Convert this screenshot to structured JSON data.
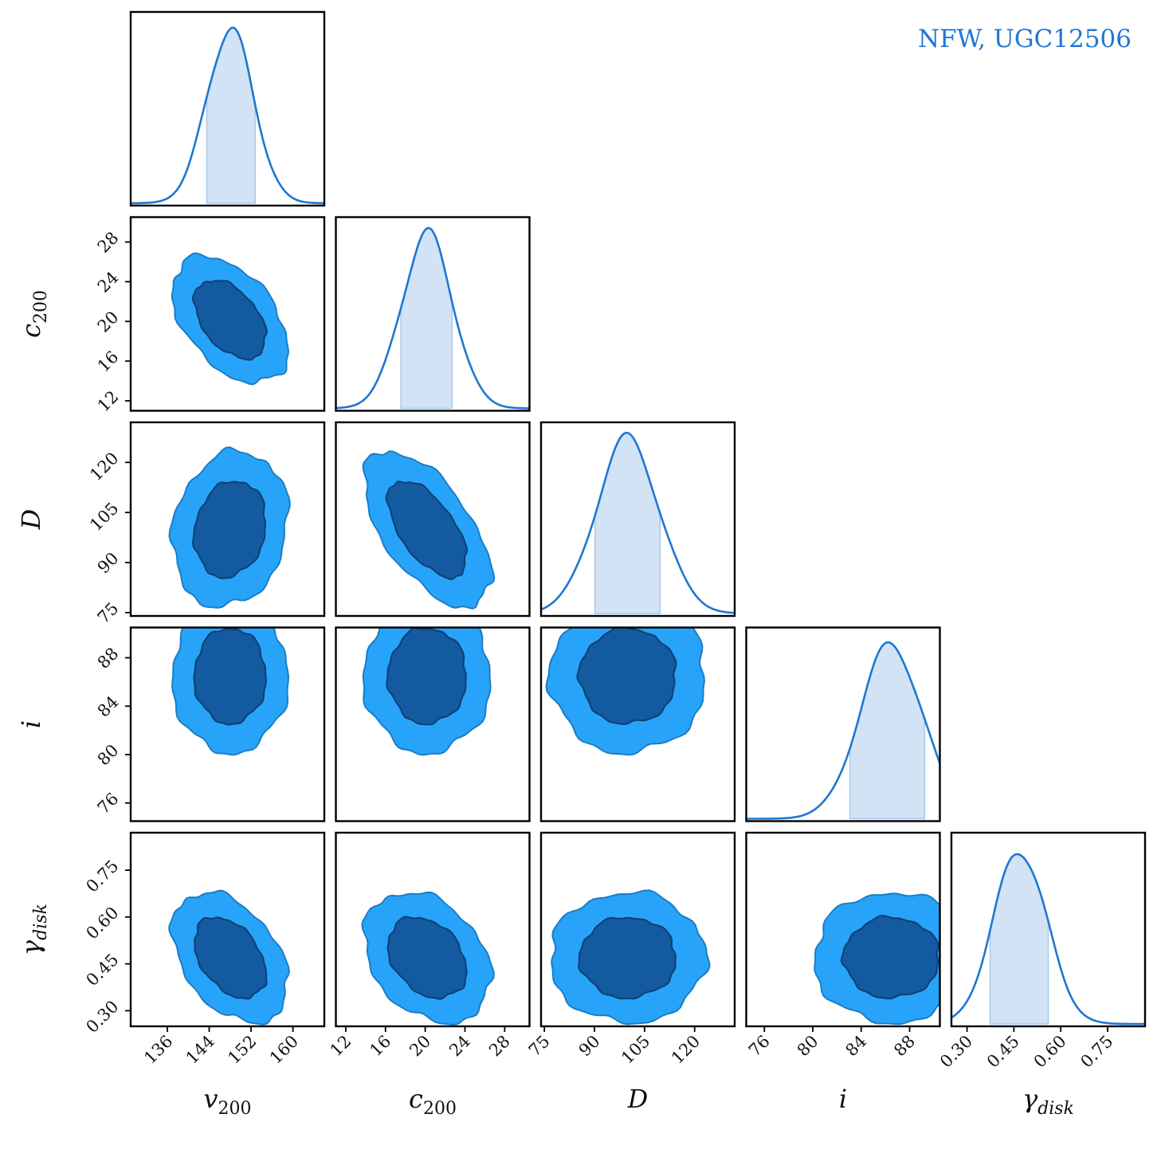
{
  "title": "NFW, UGC12506",
  "colors": {
    "title": "#1f77d2",
    "line": "#1f77d2",
    "fill_1d": "#d1e3f5",
    "contour_outer": "#27a4fa",
    "contour_outer_edge": "#1b7dc4",
    "contour_inner": "#135aa0",
    "contour_inner_edge": "#0d3f73",
    "frame": "#000000"
  },
  "chart_data": {
    "type": "corner",
    "title": "NFW, UGC12506",
    "parameters": [
      {
        "name": "v200",
        "label": "v",
        "sub": "200",
        "range": [
          129,
          166
        ],
        "ticks": [
          "136",
          "144",
          "152",
          "160"
        ],
        "tick_values": [
          136,
          144,
          152,
          160
        ],
        "mean": 148,
        "sigma": 4.5,
        "interval": [
          143.5,
          153
        ]
      },
      {
        "name": "c200",
        "label": "c",
        "sub": "200",
        "range": [
          11,
          30.5
        ],
        "ticks": [
          "12",
          "16",
          "20",
          "24",
          "28"
        ],
        "tick_values": [
          12,
          16,
          20,
          24,
          28
        ],
        "mean": 20.2,
        "sigma": 2.6,
        "interval": [
          17.5,
          22.8
        ]
      },
      {
        "name": "D",
        "label": "D",
        "sub": "",
        "range": [
          74,
          132
        ],
        "ticks": [
          "75",
          "90",
          "105",
          "120"
        ],
        "tick_values": [
          75,
          90,
          105,
          120
        ],
        "mean": 100,
        "sigma": 9.5,
        "interval": [
          90,
          110
        ]
      },
      {
        "name": "i",
        "label": "i",
        "sub": "",
        "range": [
          74.5,
          90.5
        ],
        "ticks": [
          "76",
          "80",
          "84",
          "88"
        ],
        "tick_values": [
          76,
          80,
          84,
          88
        ],
        "mean": 86.5,
        "sigma": 2.6,
        "interval": [
          83,
          89.3
        ]
      },
      {
        "name": "gamma_disk",
        "label": "γ",
        "sub": "disk",
        "range": [
          0.25,
          0.87
        ],
        "ticks": [
          "0.30",
          "0.45",
          "0.60",
          "0.75"
        ],
        "tick_values": [
          0.3,
          0.45,
          0.6,
          0.75
        ],
        "mean": 0.47,
        "sigma": 0.085,
        "interval": [
          0.37,
          0.56
        ]
      }
    ],
    "correlations": [
      {
        "pair": [
          "v200",
          "c200"
        ],
        "rho": -0.45
      },
      {
        "pair": [
          "v200",
          "D"
        ],
        "rho": 0.15
      },
      {
        "pair": [
          "c200",
          "D"
        ],
        "rho": -0.6
      },
      {
        "pair": [
          "v200",
          "i"
        ],
        "rho": 0.0
      },
      {
        "pair": [
          "c200",
          "i"
        ],
        "rho": 0.0
      },
      {
        "pair": [
          "D",
          "i"
        ],
        "rho": 0.0
      },
      {
        "pair": [
          "v200",
          "gamma_disk"
        ],
        "rho": -0.4
      },
      {
        "pair": [
          "c200",
          "gamma_disk"
        ],
        "rho": -0.3
      },
      {
        "pair": [
          "D",
          "gamma_disk"
        ],
        "rho": 0.0
      },
      {
        "pair": [
          "i",
          "gamma_disk"
        ],
        "rho": 0.0
      }
    ]
  }
}
